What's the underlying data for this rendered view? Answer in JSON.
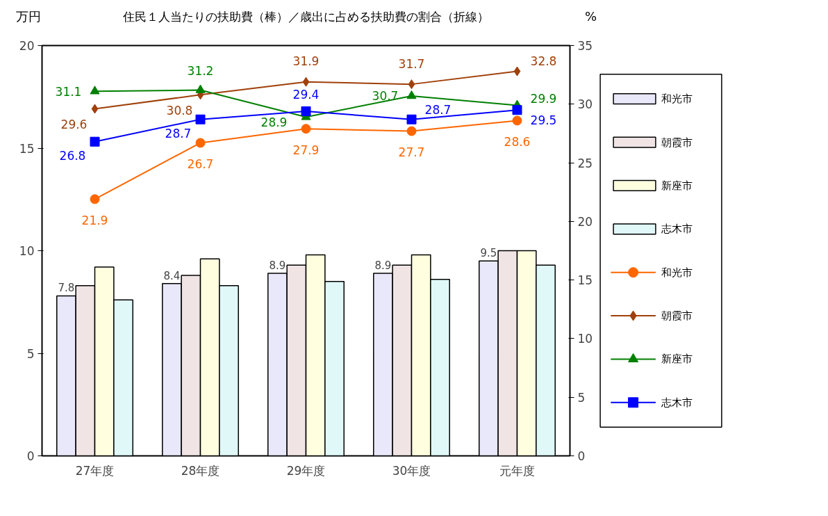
{
  "chart_data": {
    "type": "bar",
    "title": "住民１人当たりの扶助費（棒）／歳出に占める扶助費の割合（折線）",
    "ylabel": "万円",
    "y2label": "%",
    "categories": [
      "27年度",
      "28年度",
      "29年度",
      "30年度",
      "元年度"
    ],
    "series": [
      {
        "name": "和光市",
        "color": "#e8e8fa",
        "values": [
          7.8,
          8.4,
          8.9,
          8.9,
          9.5
        ],
        "value_labels": [
          "7.8",
          "8.4",
          "8.9",
          "8.9",
          "9.5"
        ]
      },
      {
        "name": "朝霞市",
        "color": "#f0e4e4",
        "values": [
          8.3,
          8.8,
          9.3,
          9.3,
          10.0
        ]
      },
      {
        "name": "新座市",
        "color": "#ffffe0",
        "values": [
          9.2,
          9.6,
          9.8,
          9.8,
          10.0
        ]
      },
      {
        "name": "志木市",
        "color": "#e0f8f8",
        "values": [
          7.6,
          8.3,
          8.5,
          8.6,
          9.3
        ]
      },
      {
        "name": "和光市",
        "type": "line",
        "axis": "y2",
        "marker": "circle",
        "color": "#ff6600",
        "values": [
          21.9,
          26.7,
          27.9,
          27.7,
          28.6
        ],
        "data_labels": true
      },
      {
        "name": "朝霞市",
        "type": "line",
        "axis": "y2",
        "marker": "diamond",
        "color": "#a0400a",
        "values": [
          29.6,
          30.8,
          31.9,
          31.7,
          32.8
        ],
        "data_labels": true
      },
      {
        "name": "新座市",
        "type": "line",
        "axis": "y2",
        "marker": "triangle",
        "color": "#008000",
        "values": [
          31.1,
          31.2,
          28.9,
          30.7,
          29.9
        ],
        "data_labels": true
      },
      {
        "name": "志木市",
        "type": "line",
        "axis": "y2",
        "marker": "square",
        "color": "#0000ff",
        "values": [
          26.8,
          28.7,
          29.4,
          28.7,
          29.5
        ],
        "data_labels": true
      }
    ],
    "ylim": [
      0,
      20
    ],
    "yticks": [
      0,
      5,
      10,
      15,
      20
    ],
    "y2lim": [
      0,
      35
    ],
    "y2ticks": [
      0,
      5,
      10,
      15,
      20,
      25,
      30,
      35
    ],
    "grid": false,
    "legend": "right"
  }
}
